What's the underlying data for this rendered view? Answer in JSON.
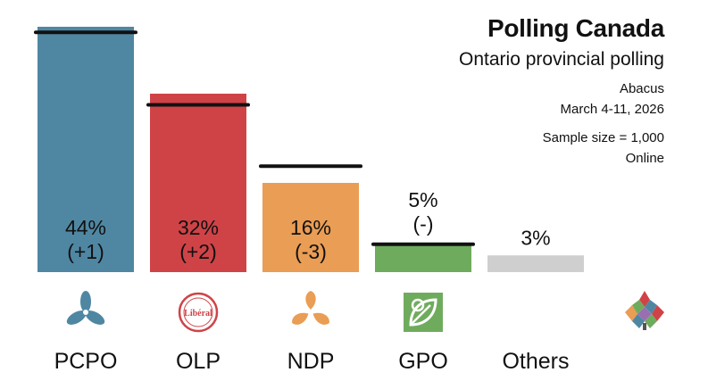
{
  "header": {
    "title": "Polling Canada",
    "subtitle": "Ontario provincial polling",
    "pollster": "Abacus",
    "dates": "March 4-11, 2026",
    "sample": "Sample size = 1,000",
    "method": "Online"
  },
  "chart_data": {
    "type": "bar",
    "title": "Polling Canada",
    "subtitle": "Ontario provincial polling",
    "categories": [
      "PCPO",
      "OLP",
      "NDP",
      "GPO",
      "Others"
    ],
    "values": [
      44,
      32,
      16,
      5,
      3
    ],
    "changes": [
      "(+1)",
      "(+2)",
      "(-3)",
      "(-)",
      ""
    ],
    "value_labels": [
      "44%",
      "32%",
      "16%",
      "5%",
      "3%"
    ],
    "previous_values": [
      43,
      30,
      19,
      5,
      null
    ],
    "colors": [
      "#4f87a3",
      "#cf4347",
      "#ea9d54",
      "#6fab5d",
      "#cfcfcf"
    ],
    "icons": [
      "pcpo-trillium-icon",
      "olp-liberal-logo-icon",
      "ndp-trillium-icon",
      "gpo-leaf-logo-icon",
      ""
    ],
    "ylim": [
      0,
      44
    ],
    "xlabel": "",
    "ylabel": ""
  },
  "brand": {
    "icon": "polling-canada-logo-icon"
  }
}
